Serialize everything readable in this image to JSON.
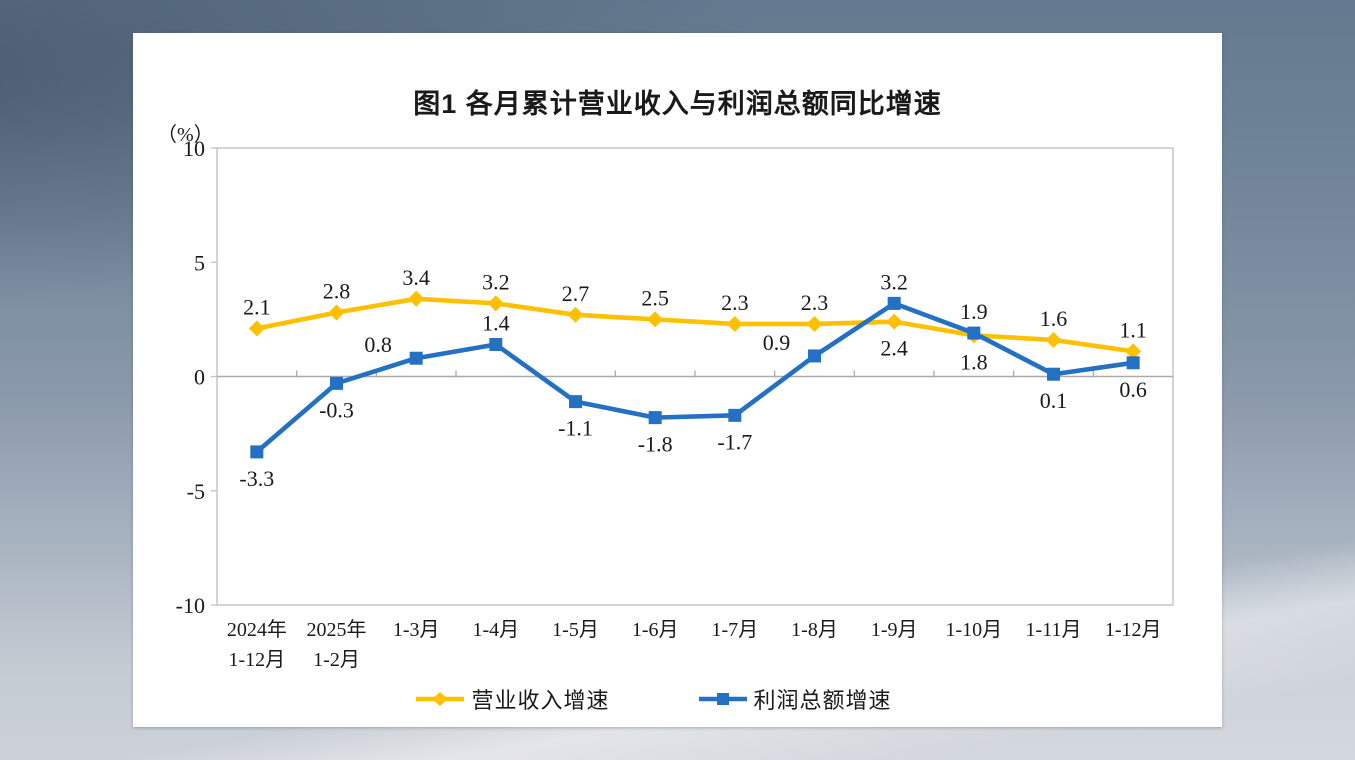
{
  "chart_data": {
    "type": "line",
    "title": "图1  各月累计营业收入与利润总额同比增速",
    "unit_label": "（%）",
    "categories": [
      [
        "2024年",
        "1-12月"
      ],
      [
        "2025年",
        "1-2月"
      ],
      [
        "1-3月"
      ],
      [
        "1-4月"
      ],
      [
        "1-5月"
      ],
      [
        "1-6月"
      ],
      [
        "1-7月"
      ],
      [
        "1-8月"
      ],
      [
        "1-9月"
      ],
      [
        "1-10月"
      ],
      [
        "1-11月"
      ],
      [
        "1-12月"
      ]
    ],
    "ylim": [
      -10,
      10
    ],
    "yticks": [
      10,
      5,
      0,
      -5,
      -10
    ],
    "grid": "zero-line-only",
    "legend_position": "bottom",
    "series": [
      {
        "name": "营业收入增速",
        "color": "#FFC000",
        "marker": "diamond",
        "values": [
          2.1,
          2.8,
          3.4,
          3.2,
          2.7,
          2.5,
          2.3,
          2.3,
          2.4,
          1.8,
          1.6,
          1.1
        ],
        "label_positions": [
          "above",
          "above",
          "above",
          "above",
          "above",
          "above",
          "above",
          "above",
          "below",
          "below",
          "above",
          "above"
        ]
      },
      {
        "name": "利润总额增速",
        "color": "#2470C3",
        "marker": "square",
        "values": [
          -3.3,
          -0.3,
          0.8,
          1.4,
          -1.1,
          -1.8,
          -1.7,
          0.9,
          3.2,
          1.9,
          0.1,
          0.6
        ],
        "label_positions": [
          "below",
          "below",
          "above-left",
          "above",
          "below",
          "below",
          "below",
          "above-left",
          "above",
          "above",
          "below",
          "below"
        ]
      }
    ],
    "axis_color": "#c2c2c2",
    "zero_line_color": "#ababab"
  }
}
